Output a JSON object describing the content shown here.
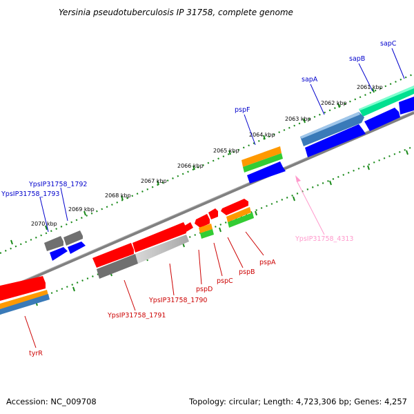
{
  "title": "Yersinia pseudotuberculosis IP 31758, complete genome",
  "footer": {
    "accession": "Accession: NC_009708",
    "summary": "Topology: circular; Length: 4,723,306 bp; Genes: 4,257"
  },
  "colors": {
    "backbone": "#808080",
    "tick": "#1a8a1a",
    "forward_label": "#0000cc",
    "reverse_label": "#cc0000",
    "rna_label": "#ff99cc",
    "cds_forward": "#0000ff",
    "cds_reverse": "#ff0000",
    "cds_forward_alt": "#3a7ab8",
    "cds_forward_special": "#00e090",
    "orange": "#ff9900",
    "green": "#33cc33",
    "gray": "#707070",
    "lightgray": "#c0c0c0"
  },
  "tick_labels": [
    "2061 kbp",
    "2062 kbp",
    "2063 kbp",
    "2064 kbp",
    "2065 kbp",
    "2066 kbp",
    "2067 kbp",
    "2068 kbp",
    "2069 kbp",
    "2070 kbp"
  ],
  "forward_genes": [
    "sapC",
    "sapB",
    "sapA",
    "pspF",
    "YpsIP31758_1792",
    "YpsIP31758_1793"
  ],
  "reverse_genes": [
    "YpsIP31758_4313",
    "pspA",
    "pspB",
    "pspC",
    "pspD",
    "YpsIP31758_1790",
    "YpsIP31758_1791",
    "tyrR"
  ]
}
